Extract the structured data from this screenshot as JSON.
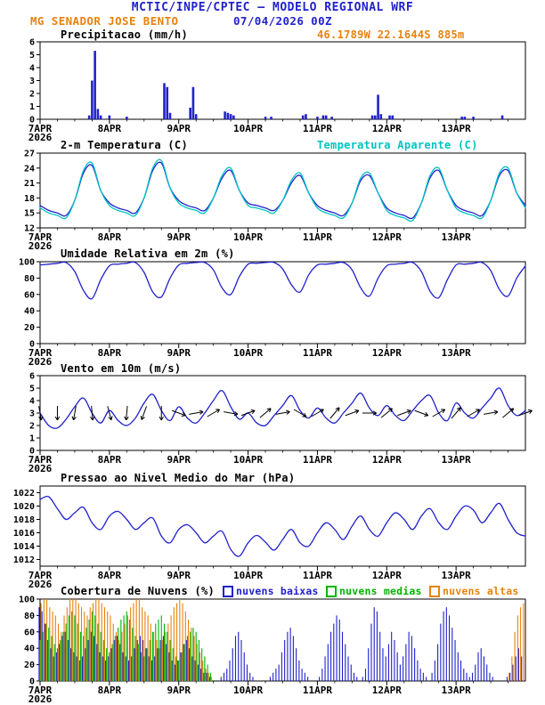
{
  "header": {
    "title": "MCTIC/INPE/CPTEC — MODELO REGIONAL WRF",
    "station": "MG SENADOR JOSE BENTO",
    "run": "07/04/2026 00Z",
    "location": "46.1789W 22.1644S 885m"
  },
  "colors": {
    "blue": "#2121cd",
    "cyan": "#00c3c3",
    "orange": "#e8820e",
    "green": "#00b400",
    "black": "#000000"
  },
  "x_axis": {
    "hours": 168,
    "day_ticks": [
      0,
      24,
      48,
      72,
      96,
      120,
      144
    ],
    "labels": [
      "7APR",
      "8APR",
      "9APR",
      "10APR",
      "11APR",
      "12APR",
      "13APR"
    ],
    "year": "2026"
  },
  "chart_data": [
    {
      "id": "precipitation",
      "type": "bar",
      "title": "Precipitacao (mm/h)",
      "ylim": [
        0,
        6
      ],
      "yticks": [
        0,
        1,
        2,
        3,
        4,
        5,
        6
      ],
      "color": "blue",
      "points": [
        [
          17,
          0.3
        ],
        [
          18,
          3.0
        ],
        [
          19,
          5.3
        ],
        [
          20,
          0.8
        ],
        [
          21,
          0.3
        ],
        [
          24,
          0.3
        ],
        [
          30,
          0.2
        ],
        [
          43,
          2.8
        ],
        [
          44,
          2.5
        ],
        [
          45,
          0.5
        ],
        [
          52,
          0.9
        ],
        [
          53,
          2.5
        ],
        [
          54,
          0.4
        ],
        [
          64,
          0.6
        ],
        [
          65,
          0.5
        ],
        [
          66,
          0.4
        ],
        [
          67,
          0.3
        ],
        [
          78,
          0.2
        ],
        [
          80,
          0.2
        ],
        [
          91,
          0.3
        ],
        [
          92,
          0.4
        ],
        [
          96,
          0.2
        ],
        [
          98,
          0.3
        ],
        [
          99,
          0.3
        ],
        [
          101,
          0.2
        ],
        [
          115,
          0.3
        ],
        [
          116,
          0.3
        ],
        [
          117,
          1.9
        ],
        [
          118,
          0.4
        ],
        [
          121,
          0.3
        ],
        [
          122,
          0.3
        ],
        [
          146,
          0.2
        ],
        [
          147,
          0.2
        ],
        [
          150,
          0.2
        ],
        [
          160,
          0.3
        ]
      ]
    },
    {
      "id": "temperature",
      "type": "line",
      "title": "2-m Temperatura (C)",
      "title2": "Temperatura Aparente (C)",
      "ylim": [
        12,
        27
      ],
      "yticks": [
        12,
        15,
        18,
        21,
        24,
        27
      ],
      "step_hours": 3,
      "series": [
        {
          "name": "2-m Temperatura (C)",
          "color": "blue",
          "values": [
            16.5,
            15.5,
            15.0,
            14.5,
            17.5,
            23.0,
            24.5,
            19.5,
            17.0,
            16.0,
            15.5,
            15.0,
            18.0,
            23.5,
            25.0,
            20.0,
            17.5,
            16.5,
            16.0,
            15.5,
            18.0,
            22.0,
            23.5,
            19.5,
            17.0,
            16.5,
            16.0,
            15.5,
            17.5,
            21.0,
            22.5,
            19.0,
            16.5,
            15.5,
            15.0,
            14.5,
            17.0,
            21.5,
            22.5,
            19.0,
            16.0,
            15.0,
            14.5,
            14.0,
            17.0,
            22.0,
            23.5,
            19.5,
            16.5,
            15.5,
            15.0,
            14.5,
            17.5,
            22.5,
            23.5,
            19.0,
            16.5
          ]
        },
        {
          "name": "Temperatura Aparente (C)",
          "color": "cyan",
          "values": [
            16.0,
            15.0,
            14.5,
            14.0,
            17.5,
            23.5,
            25.0,
            19.5,
            16.5,
            15.5,
            15.0,
            14.5,
            18.0,
            24.0,
            25.5,
            20.0,
            17.0,
            16.0,
            15.5,
            15.0,
            18.0,
            22.5,
            24.0,
            19.5,
            16.5,
            16.0,
            15.5,
            15.0,
            17.5,
            21.5,
            23.0,
            19.0,
            16.0,
            15.0,
            14.5,
            14.0,
            17.0,
            22.0,
            23.0,
            19.0,
            15.5,
            14.5,
            14.0,
            13.5,
            17.0,
            22.5,
            24.0,
            19.5,
            16.0,
            15.0,
            14.5,
            14.0,
            17.5,
            23.0,
            24.0,
            19.0,
            16.0
          ]
        }
      ]
    },
    {
      "id": "relative-humidity",
      "type": "line",
      "title": "Umidade Relativa em 2m (%)",
      "ylim": [
        0,
        100
      ],
      "yticks": [
        0,
        20,
        40,
        60,
        80,
        100
      ],
      "step_hours": 3,
      "series": [
        {
          "name": "Umidade Relativa em 2m (%)",
          "color": "blue",
          "values": [
            96,
            97,
            98,
            99,
            88,
            65,
            55,
            78,
            95,
            97,
            98,
            99,
            87,
            63,
            57,
            80,
            96,
            98,
            99,
            99,
            90,
            68,
            60,
            82,
            97,
            98,
            99,
            99,
            91,
            72,
            63,
            84,
            96,
            97,
            98,
            99,
            90,
            68,
            58,
            80,
            95,
            97,
            98,
            99,
            88,
            64,
            56,
            78,
            96,
            97,
            98,
            99,
            89,
            66,
            58,
            80,
            95
          ]
        }
      ]
    },
    {
      "id": "wind-10m",
      "type": "line+arrows",
      "title": "Vento em 10m (m/s)",
      "ylim": [
        0,
        6
      ],
      "yticks": [
        0,
        1,
        2,
        3,
        4,
        5,
        6
      ],
      "step_hours": 3,
      "series": [
        {
          "name": "Vento em 10m (m/s)",
          "color": "blue",
          "values": [
            3.0,
            2.0,
            1.8,
            2.5,
            3.5,
            4.2,
            3.0,
            2.2,
            3.2,
            2.4,
            2.0,
            2.6,
            3.8,
            4.5,
            3.2,
            2.4,
            3.5,
            2.6,
            2.2,
            3.0,
            4.0,
            4.8,
            3.5,
            2.5,
            3.0,
            2.2,
            2.0,
            2.8,
            3.6,
            4.4,
            3.2,
            2.6,
            3.4,
            2.6,
            2.2,
            3.0,
            3.8,
            4.6,
            3.4,
            2.8,
            3.6,
            2.8,
            2.4,
            3.2,
            4.0,
            4.4,
            3.0,
            2.4,
            3.8,
            3.0,
            2.6,
            3.4,
            4.2,
            5.0,
            3.6,
            2.8,
            3.2
          ]
        }
      ],
      "arrows": {
        "step_hours": 6,
        "baseline": 3,
        "color": "black",
        "angles_deg": [
          -80,
          -90,
          -100,
          -85,
          -75,
          -95,
          -110,
          -90,
          -20,
          10,
          30,
          -10,
          20,
          40,
          10,
          -30,
          30,
          50,
          20,
          0,
          40,
          20,
          -20,
          30,
          50,
          30,
          10,
          40,
          20
        ]
      }
    },
    {
      "id": "mslp",
      "type": "line",
      "title": "Pressao ao Nivel Medio do Mar (hPa)",
      "ylim": [
        1011,
        1023
      ],
      "yticks": [
        1012,
        1014,
        1016,
        1018,
        1020,
        1022
      ],
      "step_hours": 3,
      "series": [
        {
          "name": "Pressao ao Nivel Medio do Mar (hPa)",
          "color": "blue",
          "values": [
            1021.0,
            1021.4,
            1019.6,
            1018.0,
            1019.0,
            1019.8,
            1017.5,
            1016.5,
            1018.5,
            1019.2,
            1018.0,
            1016.5,
            1017.5,
            1018.2,
            1015.5,
            1014.5,
            1016.5,
            1017.2,
            1016.0,
            1014.5,
            1015.5,
            1016.2,
            1013.5,
            1012.5,
            1014.5,
            1015.6,
            1014.6,
            1013.4,
            1015.0,
            1016.5,
            1014.5,
            1014.0,
            1016.0,
            1017.5,
            1016.5,
            1015.0,
            1017.0,
            1018.5,
            1016.5,
            1015.5,
            1017.5,
            1019.0,
            1018.0,
            1016.5,
            1018.5,
            1019.6,
            1017.5,
            1016.5,
            1018.5,
            1020.0,
            1019.4,
            1017.5,
            1019.0,
            1020.4,
            1018.0,
            1016.0,
            1015.5
          ]
        }
      ]
    },
    {
      "id": "cloud-cover",
      "type": "cloudbars",
      "title": "Cobertura de Nuvens (%)",
      "ylim": [
        0,
        100
      ],
      "yticks": [
        0,
        20,
        40,
        60,
        80,
        100
      ],
      "step_hours": 1,
      "legend": [
        {
          "label": "nuvens baixas",
          "color": "blue"
        },
        {
          "label": "nuvens medias",
          "color": "green"
        },
        {
          "label": "nuvens altas",
          "color": "orange"
        }
      ],
      "series": [
        {
          "name": "nuvens baixas",
          "color": "blue",
          "values": [
            90,
            85,
            70,
            50,
            40,
            30,
            35,
            45,
            55,
            60,
            50,
            40,
            35,
            30,
            25,
            30,
            40,
            50,
            60,
            55,
            45,
            35,
            30,
            25,
            30,
            40,
            50,
            55,
            45,
            35,
            30,
            25,
            30,
            40,
            50,
            55,
            50,
            40,
            30,
            25,
            30,
            40,
            50,
            55,
            45,
            35,
            25,
            20,
            25,
            35,
            45,
            50,
            40,
            30,
            25,
            20,
            15,
            10,
            10,
            5,
            0,
            0,
            0,
            5,
            10,
            15,
            25,
            40,
            55,
            60,
            50,
            35,
            20,
            10,
            5,
            0,
            0,
            0,
            0,
            0,
            5,
            10,
            15,
            20,
            35,
            50,
            60,
            65,
            55,
            40,
            25,
            15,
            10,
            5,
            0,
            0,
            0,
            5,
            15,
            30,
            45,
            60,
            70,
            80,
            75,
            60,
            45,
            30,
            20,
            10,
            5,
            0,
            5,
            15,
            40,
            70,
            90,
            85,
            60,
            40,
            30,
            45,
            60,
            50,
            35,
            20,
            30,
            45,
            60,
            55,
            40,
            25,
            15,
            10,
            5,
            0,
            10,
            25,
            45,
            70,
            85,
            90,
            80,
            65,
            50,
            35,
            25,
            15,
            10,
            5,
            10,
            20,
            35,
            40,
            30,
            20,
            10,
            5,
            0,
            0,
            0,
            0,
            5,
            10,
            20,
            30,
            40,
            30
          ]
        },
        {
          "name": "nuvens medias",
          "color": "green",
          "values": [
            50,
            60,
            70,
            65,
            55,
            45,
            40,
            50,
            60,
            70,
            80,
            85,
            80,
            70,
            60,
            55,
            65,
            75,
            85,
            80,
            70,
            60,
            50,
            40,
            35,
            45,
            55,
            65,
            75,
            80,
            85,
            75,
            65,
            55,
            45,
            35,
            30,
            40,
            50,
            60,
            70,
            75,
            80,
            70,
            60,
            50,
            40,
            30,
            25,
            35,
            45,
            55,
            60,
            65,
            60,
            50,
            40,
            30,
            20,
            10,
            0,
            0,
            0,
            0,
            0,
            0,
            0,
            0,
            0,
            0,
            0,
            0,
            0,
            0,
            0,
            0,
            0,
            0,
            0,
            0,
            0,
            0,
            0,
            0,
            0,
            0,
            0,
            0,
            0,
            0,
            0,
            0,
            0,
            0,
            0,
            0,
            0,
            0,
            0,
            0,
            0,
            0,
            0,
            0,
            0,
            0,
            0,
            0,
            0,
            0,
            0,
            0,
            0,
            0,
            0,
            0,
            0,
            0,
            0,
            0,
            0,
            0,
            0,
            0,
            0,
            0,
            0,
            0,
            0,
            0,
            0,
            0,
            0,
            0,
            0,
            0,
            0,
            0,
            0,
            0,
            0,
            0,
            0,
            0,
            0,
            0,
            0,
            0,
            0,
            0,
            0,
            0,
            0,
            0,
            0,
            0,
            0,
            0,
            0,
            0,
            0,
            0,
            0,
            0,
            0,
            0,
            0,
            0
          ]
        },
        {
          "name": "nuvens altas",
          "color": "orange",
          "values": [
            95,
            100,
            100,
            90,
            85,
            80,
            70,
            60,
            80,
            90,
            100,
            100,
            100,
            95,
            90,
            85,
            80,
            90,
            95,
            100,
            100,
            95,
            90,
            85,
            80,
            70,
            60,
            50,
            60,
            70,
            80,
            90,
            95,
            100,
            100,
            90,
            85,
            80,
            70,
            60,
            50,
            40,
            50,
            60,
            70,
            80,
            90,
            95,
            100,
            95,
            85,
            75,
            65,
            55,
            45,
            35,
            25,
            15,
            10,
            5,
            0,
            0,
            0,
            0,
            0,
            0,
            0,
            0,
            0,
            0,
            0,
            0,
            0,
            0,
            0,
            0,
            0,
            0,
            0,
            0,
            0,
            0,
            0,
            0,
            0,
            0,
            0,
            0,
            0,
            0,
            0,
            0,
            0,
            0,
            0,
            0,
            0,
            0,
            0,
            0,
            0,
            0,
            0,
            0,
            0,
            0,
            0,
            0,
            0,
            0,
            0,
            0,
            0,
            0,
            0,
            0,
            0,
            0,
            0,
            0,
            0,
            0,
            0,
            0,
            0,
            0,
            0,
            0,
            0,
            0,
            0,
            0,
            0,
            0,
            0,
            0,
            0,
            0,
            0,
            0,
            0,
            0,
            0,
            0,
            0,
            0,
            0,
            0,
            0,
            0,
            0,
            0,
            0,
            0,
            0,
            0,
            0,
            0,
            0,
            0,
            0,
            0,
            10,
            30,
            60,
            80,
            90,
            95
          ]
        }
      ]
    }
  ]
}
